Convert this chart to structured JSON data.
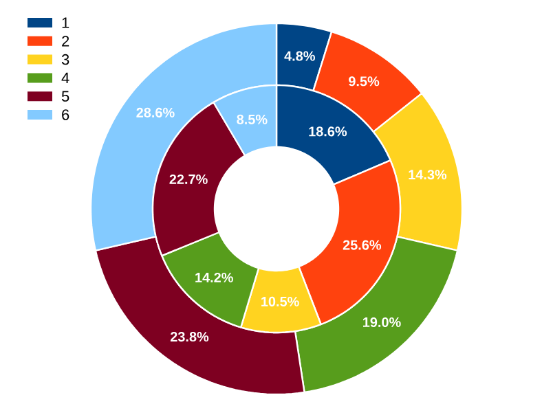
{
  "chart_data": {
    "type": "donut",
    "categories": [
      "1",
      "2",
      "3",
      "4",
      "5",
      "6"
    ],
    "colors": [
      "#004586",
      "#ff420e",
      "#ffd320",
      "#579d1c",
      "#7e0021",
      "#83caff"
    ],
    "series": [
      {
        "values": [
          4.8,
          9.5,
          14.3,
          19.0,
          23.8,
          28.6
        ],
        "value_labels": [
          "4.8%",
          "9.5%",
          "14.3%",
          "19.0%",
          "23.8%",
          "28.6%"
        ]
      },
      {
        "values": [
          18.6,
          25.6,
          10.5,
          14.2,
          22.7,
          8.5
        ],
        "value_labels": [
          "18.6%",
          "25.6%",
          "10.5%",
          "14.2%",
          "22.7%",
          "8.5%"
        ]
      }
    ],
    "legend": "top left"
  }
}
